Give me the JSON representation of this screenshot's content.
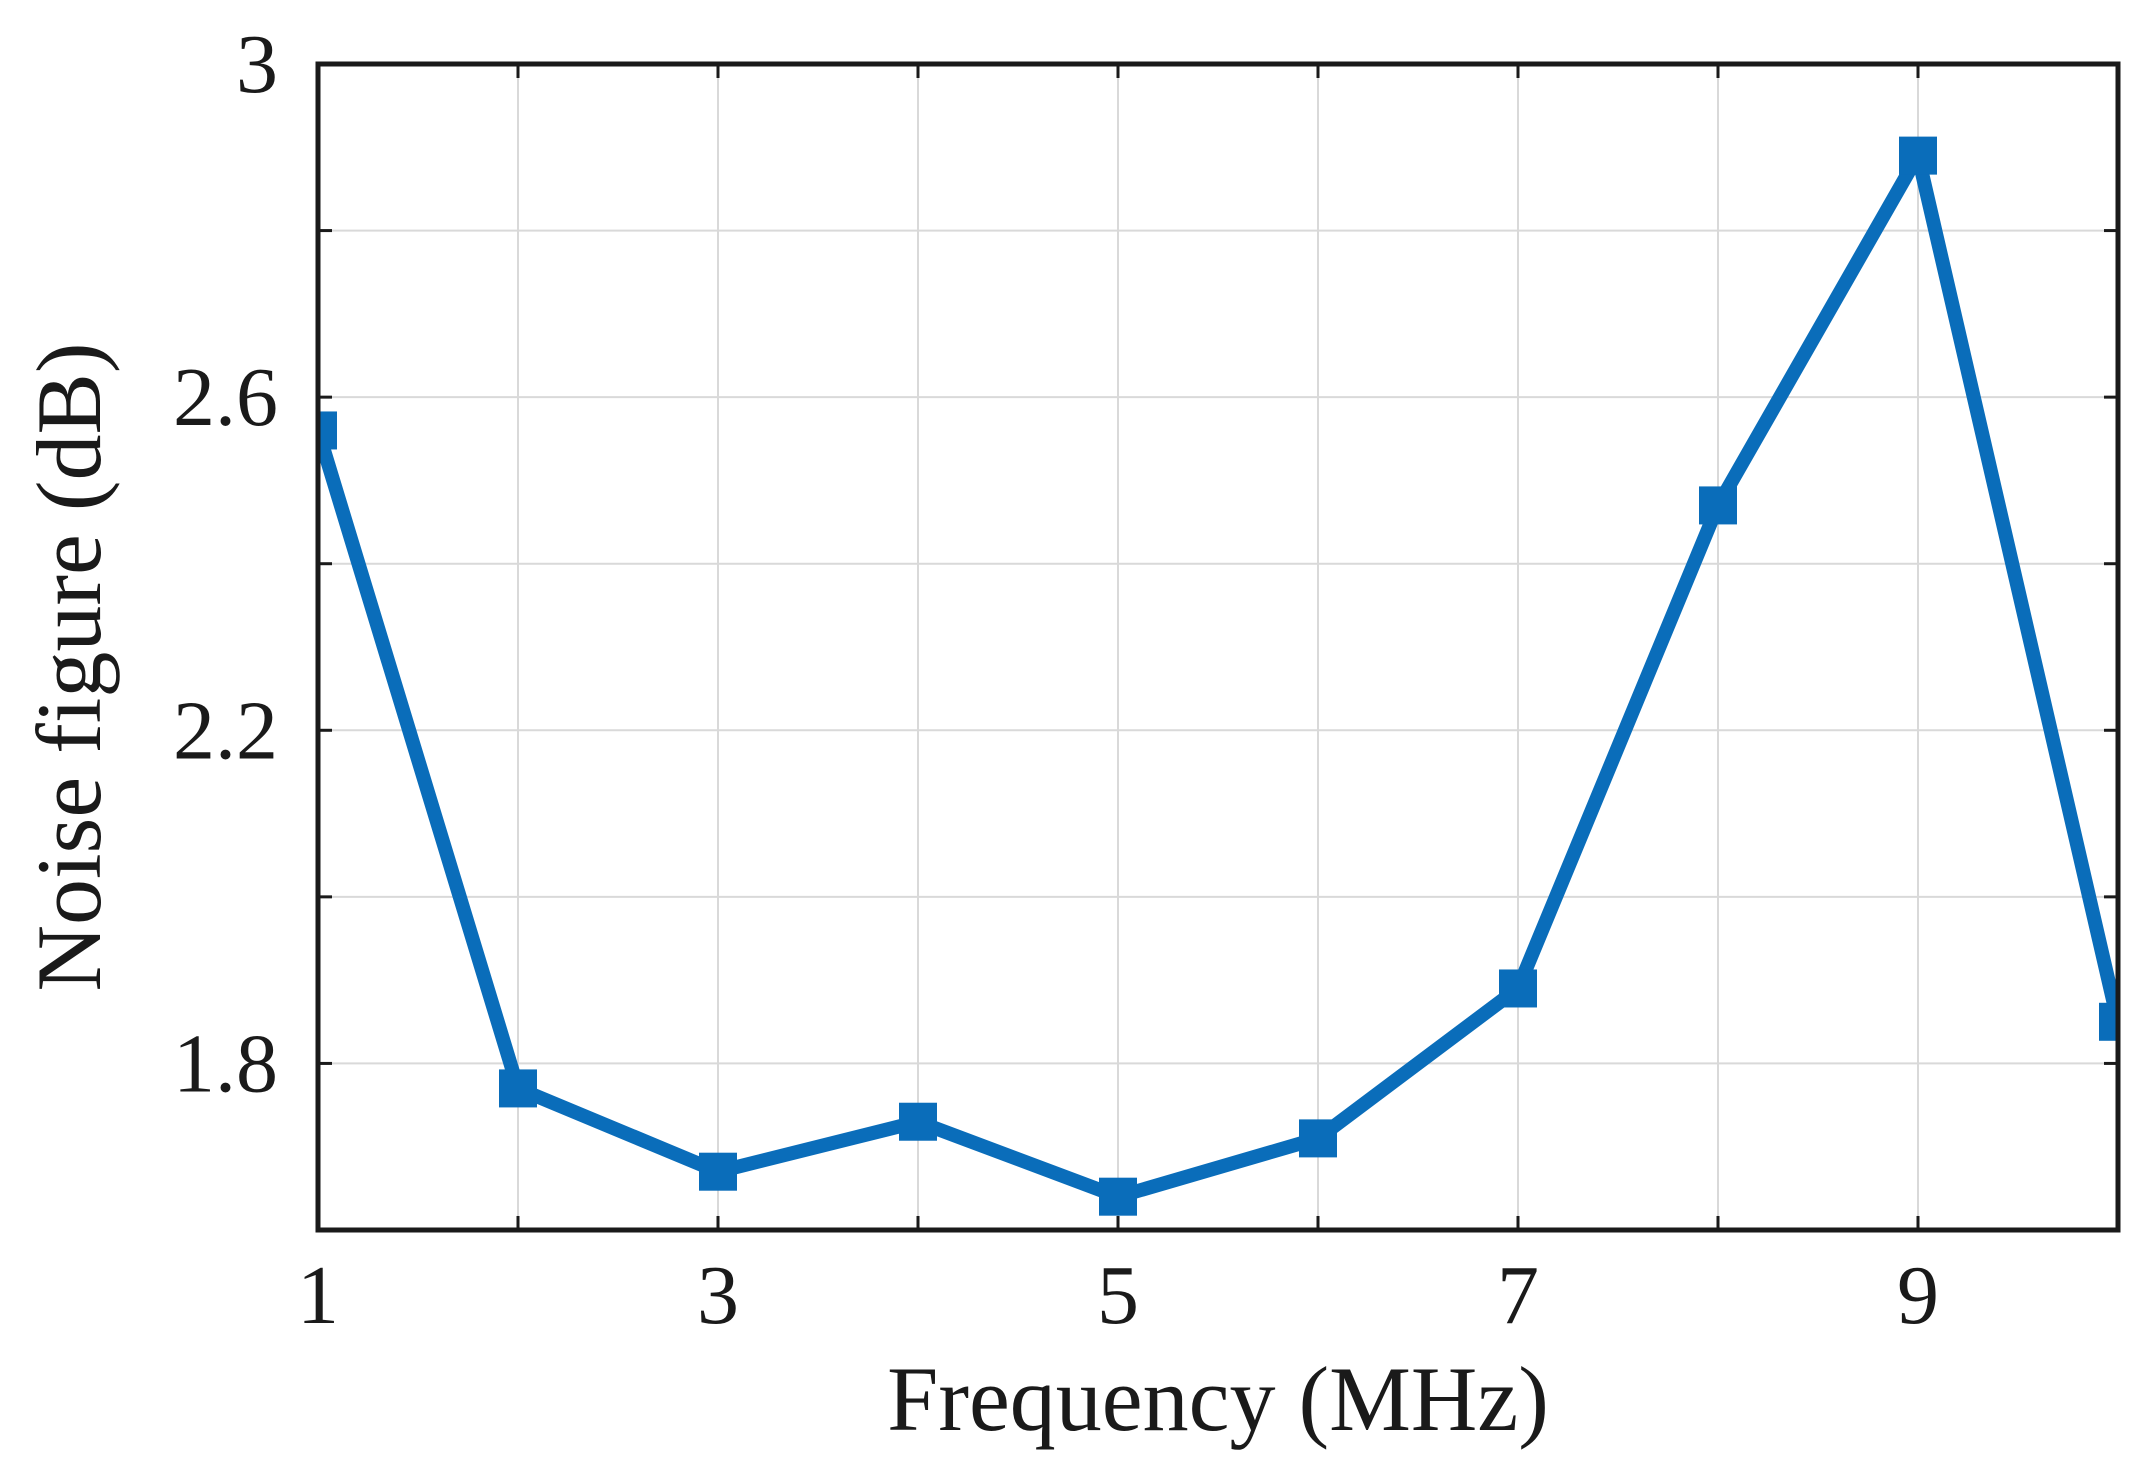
{
  "chart_data": {
    "type": "line",
    "title": "",
    "xlabel": "Frequency (MHz)",
    "ylabel": "Noise figure (dB)",
    "xlim": [
      1,
      10
    ],
    "ylim": [
      1.6,
      3.0
    ],
    "x_ticks": [
      1,
      2,
      3,
      4,
      5,
      6,
      7,
      8,
      9,
      10
    ],
    "x_tick_labels": [
      "1",
      "3",
      "5",
      "7",
      "9"
    ],
    "x_tick_label_values": [
      1,
      3,
      5,
      7,
      9
    ],
    "y_ticks": [
      1.8,
      2.0,
      2.2,
      2.4,
      2.6,
      2.8,
      3.0
    ],
    "y_tick_labels": [
      "1.8",
      "2.2",
      "2.6",
      "3"
    ],
    "y_tick_label_values": [
      1.8,
      2.2,
      2.6,
      3.0
    ],
    "grid": true,
    "legend": "none",
    "series": [
      {
        "color": "#0a6dba",
        "marker": "square",
        "x": [
          1,
          2,
          3,
          4,
          5,
          6,
          7,
          8,
          9,
          10
        ],
        "y": [
          2.56,
          1.77,
          1.67,
          1.73,
          1.64,
          1.71,
          1.89,
          2.47,
          2.89,
          1.85
        ]
      }
    ]
  }
}
